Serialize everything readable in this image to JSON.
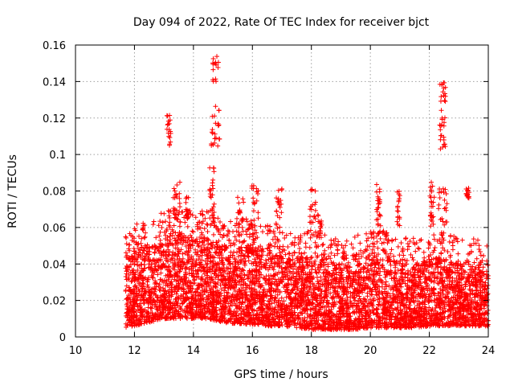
{
  "chart_data": {
    "type": "scatter",
    "title": "Day 094 of 2022, Rate Of TEC Index for receiver bjct",
    "xlabel": "GPS time / hours",
    "ylabel": "ROTI / TECUs",
    "xlim": [
      10,
      24
    ],
    "ylim": [
      0,
      0.16
    ],
    "xticks": [
      10,
      12,
      14,
      16,
      18,
      20,
      22,
      24
    ],
    "xtick_labels": [
      "10",
      "12",
      "14",
      "16",
      "18",
      "20",
      "22",
      "24"
    ],
    "yticks": [
      0,
      0.02,
      0.04,
      0.06,
      0.08,
      0.1,
      0.12,
      0.14,
      0.16
    ],
    "ytick_labels": [
      "0",
      "0.02",
      "0.04",
      "0.06",
      "0.08",
      "0.1",
      "0.12",
      "0.14",
      "0.16"
    ],
    "grid": true,
    "marker": "+",
    "color": "#ff0000",
    "series": [
      {
        "name": "ROTI",
        "x_range": [
          11.7,
          24.0
        ],
        "baseline_envelope": [
          [
            11.7,
            0.005,
            0.045
          ],
          [
            12.0,
            0.006,
            0.048
          ],
          [
            12.5,
            0.008,
            0.05
          ],
          [
            13.0,
            0.01,
            0.055
          ],
          [
            13.5,
            0.01,
            0.058
          ],
          [
            14.0,
            0.01,
            0.055
          ],
          [
            14.5,
            0.01,
            0.055
          ],
          [
            15.0,
            0.008,
            0.05
          ],
          [
            15.5,
            0.007,
            0.052
          ],
          [
            16.0,
            0.007,
            0.05
          ],
          [
            16.5,
            0.006,
            0.048
          ],
          [
            17.0,
            0.006,
            0.045
          ],
          [
            17.5,
            0.005,
            0.042
          ],
          [
            18.0,
            0.004,
            0.045
          ],
          [
            18.5,
            0.004,
            0.042
          ],
          [
            19.0,
            0.004,
            0.04
          ],
          [
            19.5,
            0.004,
            0.042
          ],
          [
            20.0,
            0.005,
            0.045
          ],
          [
            20.5,
            0.005,
            0.045
          ],
          [
            21.0,
            0.005,
            0.042
          ],
          [
            21.5,
            0.005,
            0.04
          ],
          [
            22.0,
            0.006,
            0.042
          ],
          [
            22.5,
            0.006,
            0.045
          ],
          [
            23.0,
            0.006,
            0.04
          ],
          [
            23.5,
            0.006,
            0.04
          ],
          [
            24.0,
            0.006,
            0.04
          ]
        ],
        "peak_clusters": [
          {
            "x": [
              13.1,
              13.25
            ],
            "y": [
              0.104,
              0.124
            ]
          },
          {
            "x": [
              13.3,
              13.55
            ],
            "y": [
              0.06,
              0.086
            ]
          },
          {
            "x": [
              13.7,
              13.85
            ],
            "y": [
              0.06,
              0.078
            ]
          },
          {
            "x": [
              14.55,
              14.72
            ],
            "y": [
              0.06,
              0.093
            ]
          },
          {
            "x": [
              14.6,
              14.9
            ],
            "y": [
              0.104,
              0.128
            ]
          },
          {
            "x": [
              14.65,
              14.85
            ],
            "y": [
              0.14,
              0.154
            ]
          },
          {
            "x": [
              15.5,
              15.7
            ],
            "y": [
              0.06,
              0.077
            ]
          },
          {
            "x": [
              15.95,
              16.2
            ],
            "y": [
              0.06,
              0.083
            ]
          },
          {
            "x": [
              16.8,
              17.0
            ],
            "y": [
              0.06,
              0.082
            ]
          },
          {
            "x": [
              17.95,
              18.15
            ],
            "y": [
              0.06,
              0.081
            ]
          },
          {
            "x": [
              18.2,
              18.35
            ],
            "y": [
              0.055,
              0.067
            ]
          },
          {
            "x": [
              20.2,
              20.35
            ],
            "y": [
              0.055,
              0.085
            ]
          },
          {
            "x": [
              20.9,
              21.0
            ],
            "y": [
              0.06,
              0.08
            ]
          },
          {
            "x": [
              22.0,
              22.2
            ],
            "y": [
              0.06,
              0.085
            ]
          },
          {
            "x": [
              22.35,
              22.55
            ],
            "y": [
              0.1,
              0.14
            ]
          },
          {
            "x": [
              22.3,
              22.6
            ],
            "y": [
              0.06,
              0.083
            ]
          },
          {
            "x": [
              23.25,
              23.35
            ],
            "y": [
              0.076,
              0.082
            ]
          }
        ]
      }
    ]
  }
}
